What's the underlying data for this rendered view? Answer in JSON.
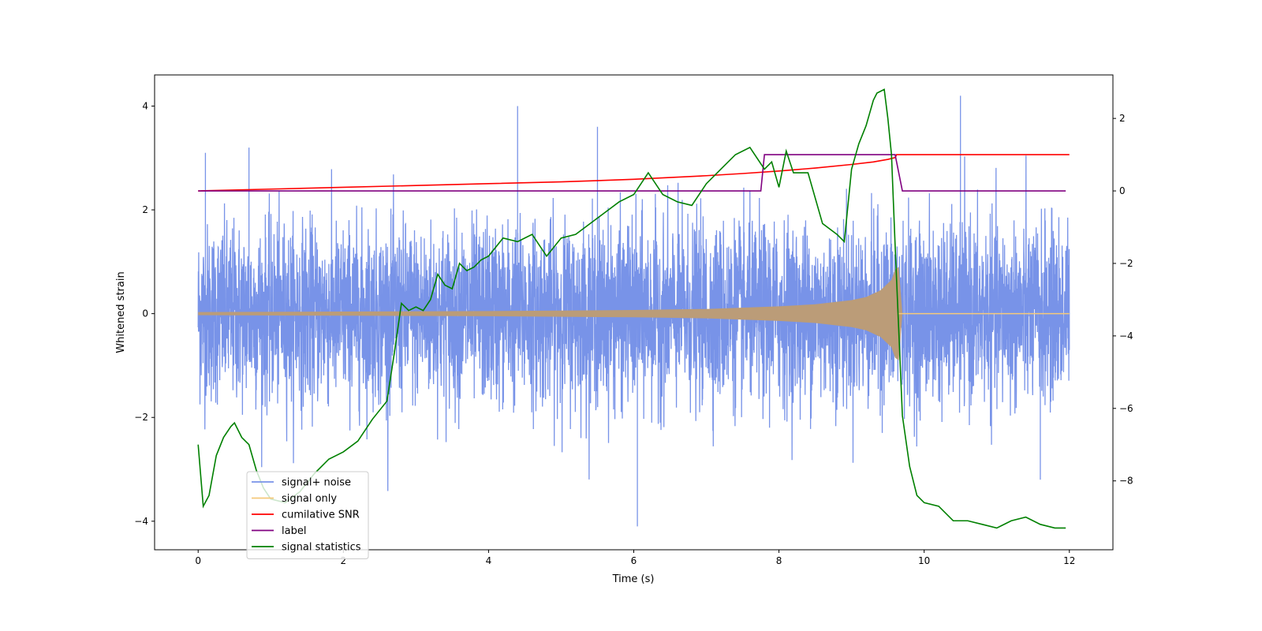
{
  "chart_data": {
    "type": "line",
    "xlabel": "Time (s)",
    "ylabel": "Whitened strain",
    "xlim": [
      -0.6,
      12.6
    ],
    "ylim": [
      -4.55,
      4.6
    ],
    "y2lim": [
      -9.9,
      3.2
    ],
    "xticks": [
      0,
      2,
      4,
      6,
      8,
      10,
      12
    ],
    "yticks": [
      -4,
      -2,
      0,
      2,
      4
    ],
    "y2ticks": [
      -8,
      -6,
      -4,
      -2,
      0,
      2
    ],
    "legend": {
      "position": "lower-left",
      "entries": [
        {
          "label": "signal+ noise",
          "color": "#7893e8"
        },
        {
          "label": "signal only",
          "color": "#f5c97a"
        },
        {
          "label": "cumilative SNR",
          "color": "#ff0000"
        },
        {
          "label": "label",
          "color": "#800080"
        },
        {
          "label": "signal statistics",
          "color": "#008000"
        }
      ]
    },
    "series": [
      {
        "name": "signal+ noise",
        "axis": "left",
        "color": "#7893e8",
        "x_range": [
          0,
          12
        ],
        "approx_std": 0.85,
        "min": -4.1,
        "max": 4.2,
        "notable_spikes": [
          [
            0.1,
            3.1
          ],
          [
            0.7,
            3.2
          ],
          [
            4.4,
            4.0
          ],
          [
            5.5,
            3.6
          ],
          [
            6.05,
            -4.1
          ],
          [
            10.5,
            4.2
          ],
          [
            11.6,
            -3.2
          ]
        ]
      },
      {
        "name": "signal only",
        "axis": "left",
        "color": "#f5c97a",
        "x": [
          0,
          2,
          4,
          5,
          6,
          7,
          8,
          8.5,
          9,
          9.2,
          9.4,
          9.55,
          9.6,
          9.65,
          9.7,
          12
        ],
        "amplitude": [
          0.03,
          0.04,
          0.05,
          0.06,
          0.07,
          0.09,
          0.14,
          0.18,
          0.26,
          0.32,
          0.45,
          0.65,
          0.85,
          0.9,
          0.0,
          0.0
        ]
      },
      {
        "name": "cumilative SNR",
        "axis": "right",
        "color": "#ff0000",
        "x": [
          0,
          1,
          2,
          3,
          4,
          5,
          6,
          7,
          7.5,
          8,
          8.5,
          9,
          9.3,
          9.5,
          9.6,
          9.62,
          9.65,
          12
        ],
        "y": [
          0,
          0.05,
          0.1,
          0.15,
          0.2,
          0.25,
          0.32,
          0.42,
          0.48,
          0.55,
          0.63,
          0.73,
          0.8,
          0.87,
          0.92,
          1.0,
          1.0,
          1.0
        ]
      },
      {
        "name": "label",
        "axis": "right",
        "color": "#800080",
        "x": [
          0,
          7.75,
          7.8,
          9.6,
          9.7,
          11.95
        ],
        "y": [
          0,
          0,
          1,
          1,
          0,
          0
        ]
      },
      {
        "name": "signal statistics",
        "axis": "right",
        "color": "#008000",
        "x": [
          0,
          0.07,
          0.15,
          0.25,
          0.35,
          0.45,
          0.5,
          0.6,
          0.7,
          0.8,
          0.9,
          1.0,
          1.2,
          1.4,
          1.6,
          1.8,
          2.0,
          2.2,
          2.4,
          2.6,
          2.7,
          2.8,
          2.9,
          3.0,
          3.1,
          3.2,
          3.3,
          3.4,
          3.5,
          3.6,
          3.7,
          3.8,
          3.9,
          4.0,
          4.2,
          4.4,
          4.6,
          4.8,
          5.0,
          5.2,
          5.4,
          5.6,
          5.8,
          6.0,
          6.2,
          6.4,
          6.6,
          6.8,
          7.0,
          7.2,
          7.4,
          7.6,
          7.8,
          7.9,
          8.0,
          8.1,
          8.2,
          8.4,
          8.6,
          8.8,
          8.9,
          9.0,
          9.1,
          9.2,
          9.3,
          9.35,
          9.45,
          9.5,
          9.55,
          9.6,
          9.7,
          9.8,
          9.9,
          10.0,
          10.2,
          10.4,
          10.6,
          10.8,
          11.0,
          11.2,
          11.4,
          11.6,
          11.8,
          11.95
        ],
        "y": [
          -7.0,
          -8.7,
          -8.4,
          -7.3,
          -6.8,
          -6.5,
          -6.4,
          -6.8,
          -7.0,
          -7.7,
          -8.2,
          -8.5,
          -8.6,
          -8.3,
          -7.8,
          -7.4,
          -7.2,
          -6.9,
          -6.3,
          -5.8,
          -4.5,
          -3.1,
          -3.3,
          -3.2,
          -3.3,
          -3.0,
          -2.3,
          -2.6,
          -2.7,
          -2.0,
          -2.2,
          -2.1,
          -1.9,
          -1.8,
          -1.3,
          -1.4,
          -1.2,
          -1.8,
          -1.3,
          -1.2,
          -0.9,
          -0.6,
          -0.3,
          -0.1,
          0.5,
          -0.1,
          -0.3,
          -0.4,
          0.2,
          0.6,
          1.0,
          1.2,
          0.6,
          0.8,
          0.1,
          1.1,
          0.5,
          0.5,
          -0.9,
          -1.2,
          -1.4,
          0.6,
          1.3,
          1.8,
          2.5,
          2.7,
          2.8,
          2.0,
          1.0,
          -1.5,
          -6.2,
          -7.6,
          -8.4,
          -8.6,
          -8.7,
          -9.1,
          -9.1,
          -9.2,
          -9.3,
          -9.1,
          -9.0,
          -9.2,
          -9.3,
          -9.3
        ]
      }
    ]
  }
}
